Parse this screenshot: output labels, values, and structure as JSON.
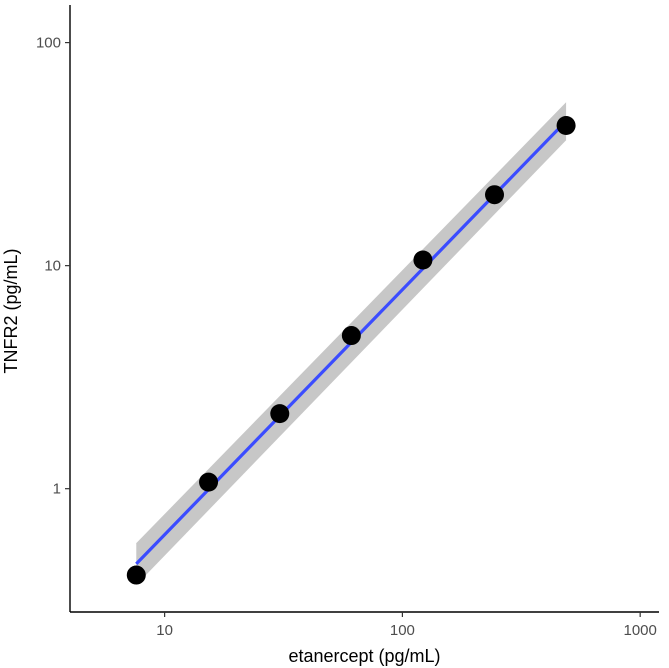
{
  "chart_data": {
    "type": "scatter",
    "title": "",
    "xlabel": "etanercept (pg/mL)",
    "ylabel": "TNFR2 (pg/mL)",
    "x_scale": "log10",
    "y_scale": "log10",
    "xlim": [
      4,
      1200
    ],
    "ylim": [
      0.28,
      140
    ],
    "x_ticks": [
      10,
      100,
      1000
    ],
    "x_tick_labels": [
      "10",
      "100",
      "1000"
    ],
    "y_ticks": [
      1,
      10,
      100
    ],
    "y_tick_labels": [
      "1",
      "10",
      "100"
    ],
    "grid": false,
    "legend": "none",
    "series": [
      {
        "x": [
          7.6,
          15.3,
          30.5,
          61,
          122,
          244,
          488
        ],
        "y": [
          0.41,
          1.07,
          2.17,
          4.86,
          10.6,
          20.8,
          42.5
        ]
      }
    ],
    "fit_line": {
      "type": "linear regression on log-log axes",
      "x": [
        7.6,
        488
      ],
      "y": [
        0.46,
        44.5
      ],
      "ci_lower": [
        0.37,
        36.5
      ],
      "ci_upper": [
        0.57,
        54.0
      ]
    },
    "colors": {
      "points": "#000000",
      "fit_line": "#3b4cff",
      "ci_band": "#bdbdbd"
    }
  }
}
